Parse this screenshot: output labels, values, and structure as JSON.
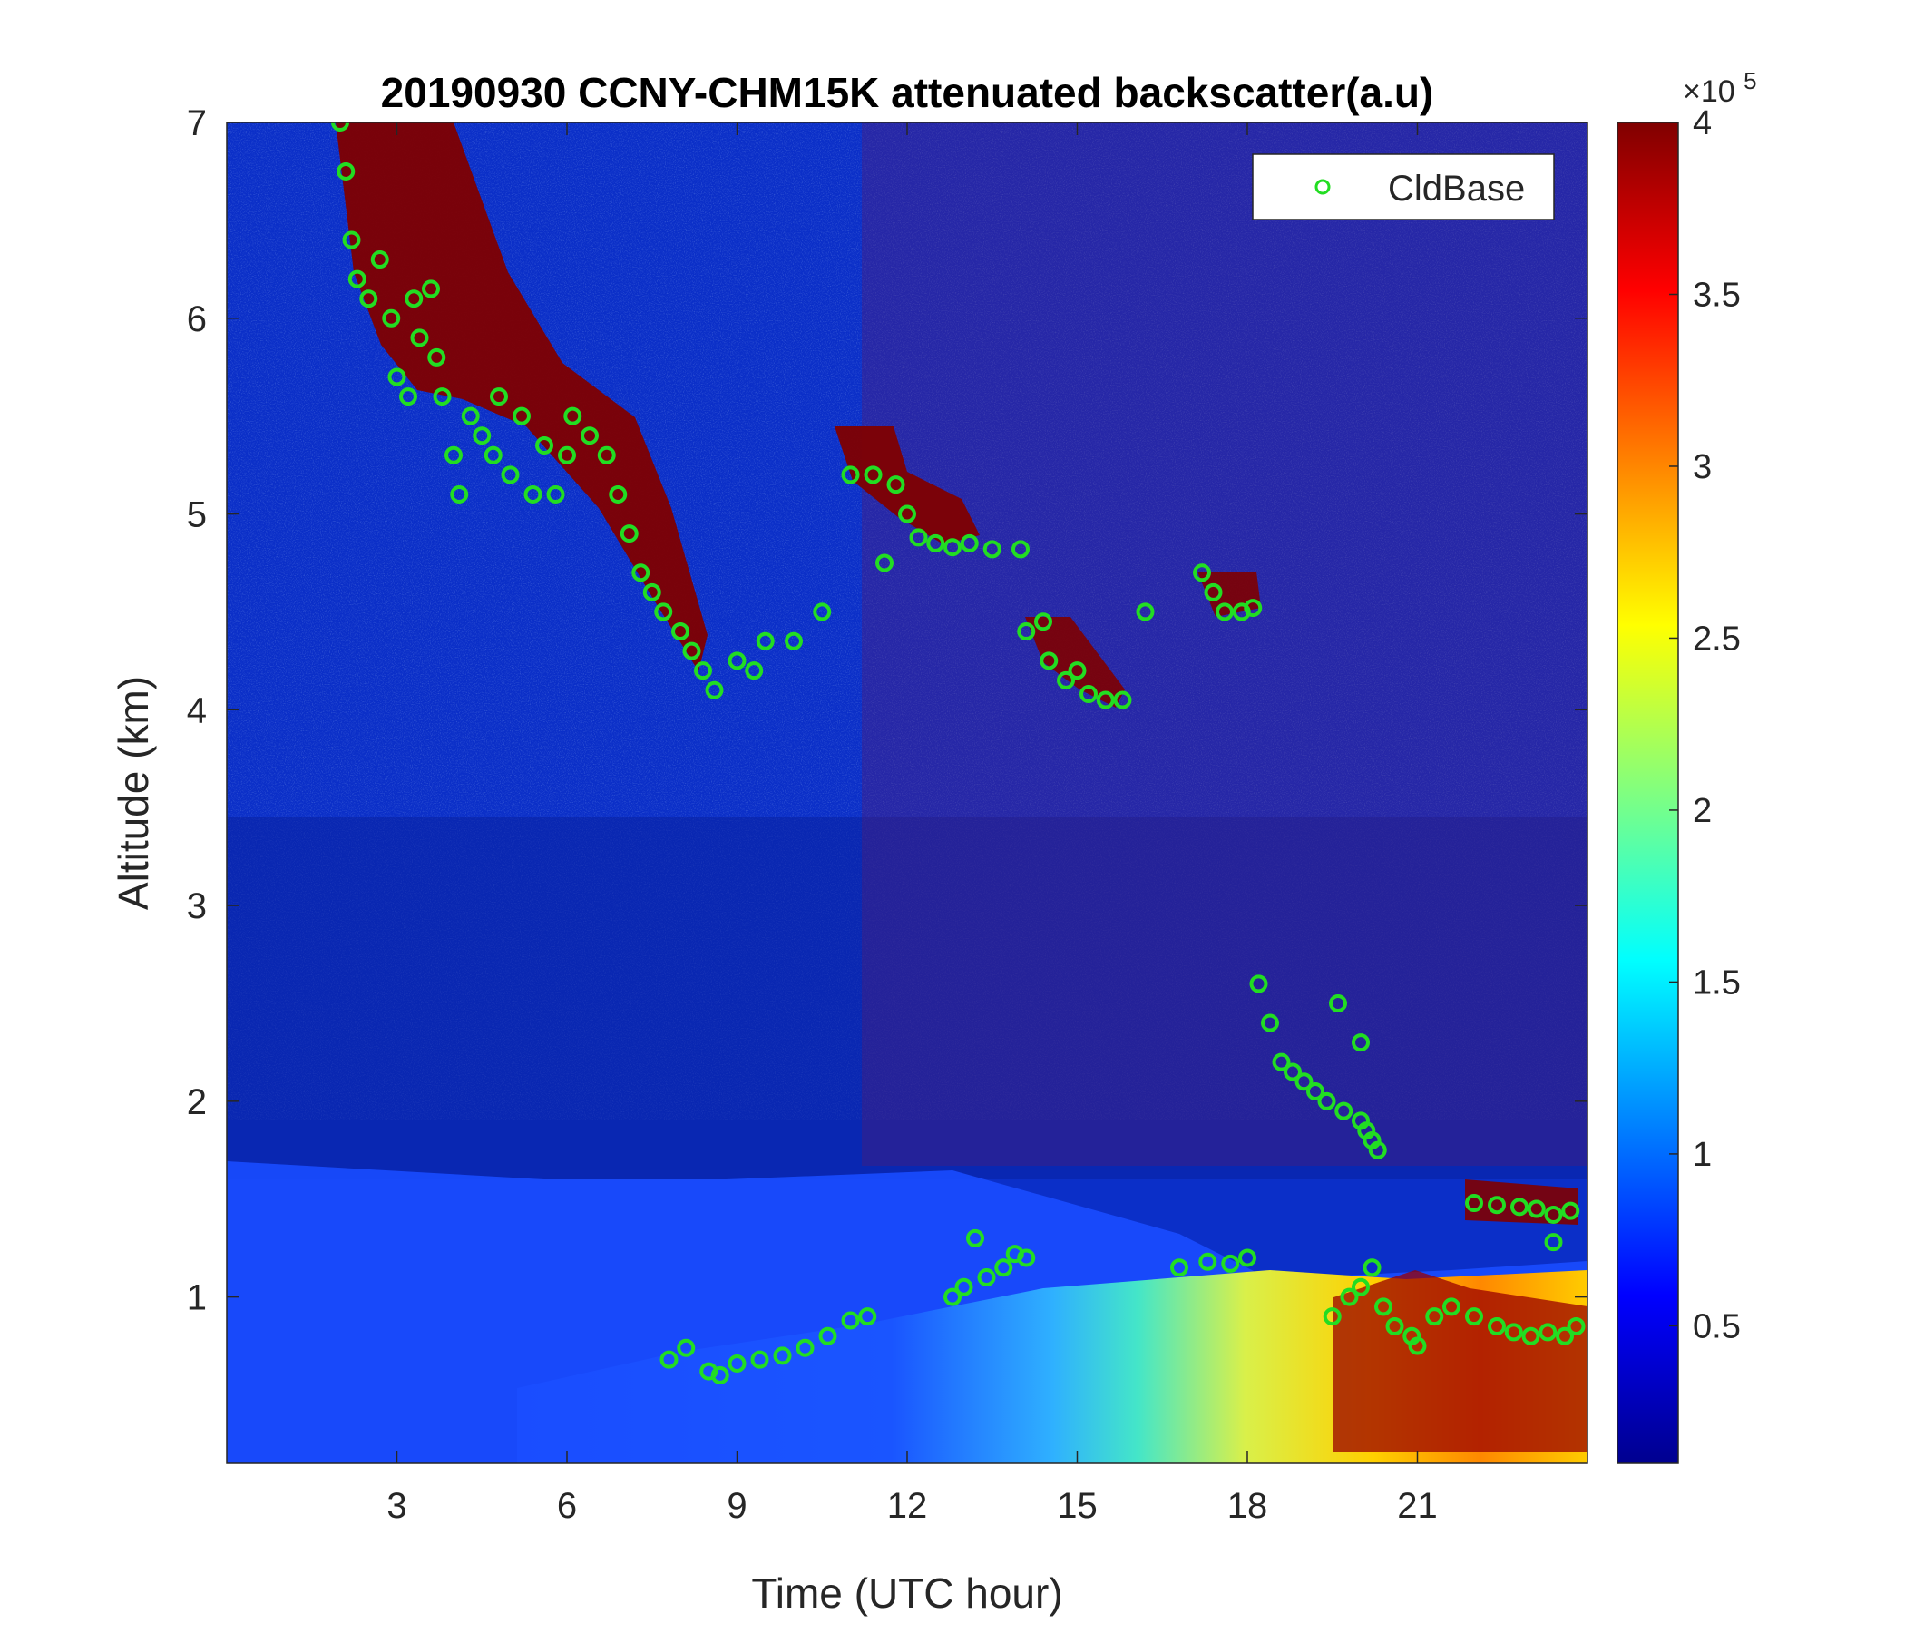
{
  "chart_data": {
    "type": "heatmap",
    "title": "20190930 CCNY-CHM15K attenuated backscatter(a.u)",
    "xlabel": "Time (UTC hour)",
    "ylabel": "Altitude (km)",
    "xlim": [
      0,
      24
    ],
    "ylim": [
      0.15,
      7
    ],
    "x_ticks": [
      3,
      6,
      9,
      12,
      15,
      18,
      21
    ],
    "y_ticks": [
      1,
      2,
      3,
      4,
      5,
      6,
      7
    ],
    "colorbar": {
      "range": [
        0.1,
        4
      ],
      "ticks": [
        0.5,
        1,
        1.5,
        2,
        2.5,
        3,
        3.5,
        4
      ],
      "multiplier_label": "×10",
      "multiplier_exponent": "5",
      "colormap": "jet"
    },
    "legend": {
      "entries": [
        "CldBase"
      ],
      "position": "top-right"
    },
    "series": [
      {
        "name": "CldBase",
        "marker": "circle",
        "color": "#22dd22",
        "points": [
          [
            2.0,
            7.0
          ],
          [
            2.1,
            6.75
          ],
          [
            2.2,
            6.4
          ],
          [
            2.3,
            6.2
          ],
          [
            2.5,
            6.1
          ],
          [
            2.7,
            6.3
          ],
          [
            2.9,
            6.0
          ],
          [
            3.0,
            5.7
          ],
          [
            3.2,
            5.6
          ],
          [
            3.3,
            6.1
          ],
          [
            3.4,
            5.9
          ],
          [
            3.6,
            6.15
          ],
          [
            3.7,
            5.8
          ],
          [
            3.8,
            5.6
          ],
          [
            4.0,
            5.3
          ],
          [
            4.1,
            5.1
          ],
          [
            4.3,
            5.5
          ],
          [
            4.5,
            5.4
          ],
          [
            4.7,
            5.3
          ],
          [
            4.8,
            5.6
          ],
          [
            5.0,
            5.2
          ],
          [
            5.2,
            5.5
          ],
          [
            5.4,
            5.1
          ],
          [
            5.6,
            5.35
          ],
          [
            5.8,
            5.1
          ],
          [
            6.0,
            5.3
          ],
          [
            6.1,
            5.5
          ],
          [
            6.4,
            5.4
          ],
          [
            6.7,
            5.3
          ],
          [
            6.9,
            5.1
          ],
          [
            7.1,
            4.9
          ],
          [
            7.3,
            4.7
          ],
          [
            7.5,
            4.6
          ],
          [
            7.7,
            4.5
          ],
          [
            8.0,
            4.4
          ],
          [
            8.2,
            4.3
          ],
          [
            8.4,
            4.2
          ],
          [
            8.6,
            4.1
          ],
          [
            9.0,
            4.25
          ],
          [
            9.3,
            4.2
          ],
          [
            9.5,
            4.35
          ],
          [
            10.0,
            4.35
          ],
          [
            10.5,
            4.5
          ],
          [
            7.8,
            0.68
          ],
          [
            8.1,
            0.74
          ],
          [
            8.5,
            0.62
          ],
          [
            8.7,
            0.6
          ],
          [
            9.0,
            0.66
          ],
          [
            9.4,
            0.68
          ],
          [
            9.8,
            0.7
          ],
          [
            10.2,
            0.74
          ],
          [
            10.6,
            0.8
          ],
          [
            11.0,
            0.88
          ],
          [
            11.3,
            0.9
          ],
          [
            11.0,
            5.2
          ],
          [
            11.4,
            5.2
          ],
          [
            11.8,
            5.15
          ],
          [
            12.0,
            5.0
          ],
          [
            12.2,
            4.88
          ],
          [
            12.5,
            4.85
          ],
          [
            12.8,
            4.83
          ],
          [
            13.1,
            4.85
          ],
          [
            13.5,
            4.82
          ],
          [
            14.0,
            4.82
          ],
          [
            11.6,
            4.75
          ],
          [
            14.1,
            4.4
          ],
          [
            14.4,
            4.45
          ],
          [
            14.5,
            4.25
          ],
          [
            14.8,
            4.15
          ],
          [
            15.0,
            4.2
          ],
          [
            15.2,
            4.08
          ],
          [
            15.5,
            4.05
          ],
          [
            15.8,
            4.05
          ],
          [
            16.2,
            4.5
          ],
          [
            17.2,
            4.7
          ],
          [
            17.4,
            4.6
          ],
          [
            17.6,
            4.5
          ],
          [
            17.9,
            4.5
          ],
          [
            18.1,
            4.52
          ],
          [
            12.8,
            1.0
          ],
          [
            13.0,
            1.05
          ],
          [
            13.2,
            1.3
          ],
          [
            13.4,
            1.1
          ],
          [
            13.7,
            1.15
          ],
          [
            13.9,
            1.22
          ],
          [
            14.1,
            1.2
          ],
          [
            16.8,
            1.15
          ],
          [
            17.3,
            1.18
          ],
          [
            17.7,
            1.17
          ],
          [
            18.0,
            1.2
          ],
          [
            18.2,
            2.6
          ],
          [
            18.4,
            2.4
          ],
          [
            18.6,
            2.2
          ],
          [
            18.8,
            2.15
          ],
          [
            19.0,
            2.1
          ],
          [
            19.2,
            2.05
          ],
          [
            19.4,
            2.0
          ],
          [
            19.7,
            1.95
          ],
          [
            19.6,
            2.5
          ],
          [
            20.0,
            1.9
          ],
          [
            20.1,
            1.85
          ],
          [
            20.2,
            1.8
          ],
          [
            20.3,
            1.75
          ],
          [
            20.0,
            2.3
          ],
          [
            19.5,
            0.9
          ],
          [
            19.8,
            1.0
          ],
          [
            20.0,
            1.05
          ],
          [
            20.2,
            1.15
          ],
          [
            20.4,
            0.95
          ],
          [
            20.6,
            0.85
          ],
          [
            20.9,
            0.8
          ],
          [
            21.0,
            0.75
          ],
          [
            21.3,
            0.9
          ],
          [
            21.6,
            0.95
          ],
          [
            22.0,
            0.9
          ],
          [
            22.4,
            0.85
          ],
          [
            22.7,
            0.82
          ],
          [
            23.0,
            0.8
          ],
          [
            23.3,
            0.82
          ],
          [
            23.6,
            0.8
          ],
          [
            23.8,
            0.85
          ],
          [
            22.0,
            1.48
          ],
          [
            22.4,
            1.47
          ],
          [
            22.8,
            1.46
          ],
          [
            23.1,
            1.45
          ],
          [
            23.4,
            1.42
          ],
          [
            23.7,
            1.44
          ],
          [
            23.4,
            1.28
          ]
        ]
      }
    ]
  }
}
